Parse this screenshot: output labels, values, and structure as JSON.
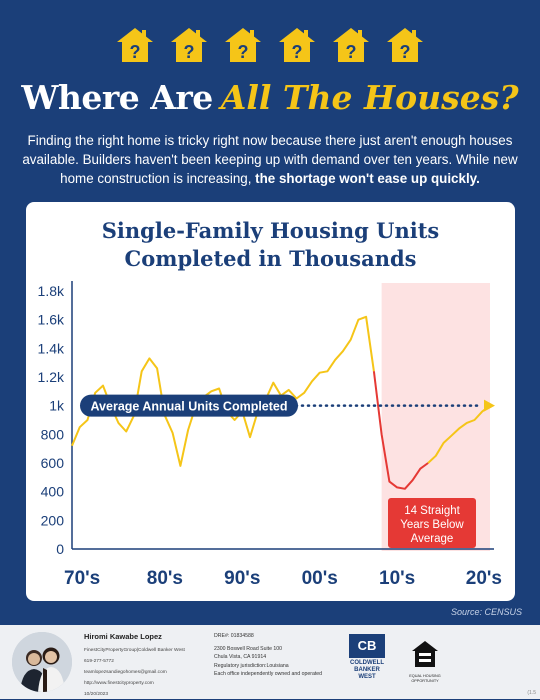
{
  "header": {
    "house_icon_count": 6,
    "house_color": "#f5c518",
    "house_glyph": "?",
    "title_part1": "Where Are",
    "title_part2": "All The Houses?",
    "intro_text": "Finding the right home is tricky right now because there just aren't enough houses available. Builders haven't been keeping up with demand over ten years. While new home construction is increasing,",
    "intro_bold": "the shortage won't ease up quickly."
  },
  "chart_title_line1": "Single-Family Housing Units",
  "chart_title_line2": "Completed in Thousands",
  "chart_data": {
    "type": "line",
    "title": "Single-Family Housing Units Completed in Thousands",
    "xlabel": "",
    "ylabel": "",
    "ylim": [
      0,
      1800
    ],
    "y_ticks": [
      "0",
      "200",
      "400",
      "600",
      "800",
      "1k",
      "1.2k",
      "1.4k",
      "1.6k",
      "1.8k"
    ],
    "x_ticks": [
      "70's",
      "80's",
      "90's",
      "00's",
      "10's",
      "20's"
    ],
    "x_ticks_years": [
      1970,
      1980,
      1990,
      2000,
      2010,
      2020
    ],
    "series": [
      {
        "color": "#f5c518",
        "points": [
          [
            1968,
            720
          ],
          [
            1969,
            850
          ],
          [
            1970,
            900
          ],
          [
            1971,
            1090
          ],
          [
            1972,
            1140
          ],
          [
            1973,
            1000
          ],
          [
            1974,
            880
          ],
          [
            1975,
            820
          ],
          [
            1976,
            930
          ],
          [
            1977,
            1240
          ],
          [
            1978,
            1330
          ],
          [
            1979,
            1260
          ],
          [
            1980,
            930
          ],
          [
            1981,
            810
          ],
          [
            1982,
            580
          ],
          [
            1983,
            830
          ],
          [
            1984,
            1000
          ],
          [
            1985,
            1060
          ],
          [
            1986,
            1100
          ],
          [
            1987,
            1120
          ],
          [
            1988,
            960
          ],
          [
            1989,
            900
          ],
          [
            1990,
            960
          ],
          [
            1991,
            780
          ],
          [
            1992,
            960
          ],
          [
            1993,
            1040
          ],
          [
            1994,
            1160
          ],
          [
            1995,
            1070
          ],
          [
            1996,
            1110
          ],
          [
            1997,
            1050
          ],
          [
            1998,
            1090
          ],
          [
            1999,
            1170
          ],
          [
            2000,
            1230
          ],
          [
            2001,
            1240
          ],
          [
            2002,
            1320
          ],
          [
            2003,
            1380
          ],
          [
            2004,
            1460
          ],
          [
            2005,
            1600
          ],
          [
            2006,
            1620
          ],
          [
            2007,
            1240
          ]
        ]
      },
      {
        "color": "#e53935",
        "points": [
          [
            2007,
            1240
          ],
          [
            2008,
            800
          ],
          [
            2009,
            470
          ],
          [
            2010,
            430
          ],
          [
            2011,
            420
          ],
          [
            2012,
            480
          ],
          [
            2013,
            560
          ],
          [
            2014,
            600
          ]
        ]
      },
      {
        "color": "#f5c518",
        "points": [
          [
            2014,
            600
          ],
          [
            2015,
            650
          ],
          [
            2016,
            740
          ],
          [
            2017,
            790
          ],
          [
            2018,
            840
          ],
          [
            2019,
            880
          ],
          [
            2020,
            900
          ],
          [
            2021,
            960
          ],
          [
            2022,
            1000
          ]
        ]
      }
    ],
    "average": {
      "value": 1000,
      "label": "Average Annual Units Completed"
    },
    "highlight": {
      "x_start": 2008,
      "x_end": 2022,
      "label": "14 Straight Years Below Average"
    }
  },
  "annotation_lines": [
    "14 Straight",
    "Years Below",
    "Average"
  ],
  "source": "Source: CENSUS",
  "footer": {
    "agent_name": "Hiromi Kawabe Lopez",
    "agent_group": "FinestCityPropertyGroup|Coldwell Banker West",
    "phone": "619-277-5772",
    "email": "teamlopezsandiegohomes@gmail.com",
    "website": "http://www.finestcityproperty.com",
    "date": "10/20/2023",
    "dre": "DRE#: 01834588",
    "address1": "2300 Boswell Road Suite 100",
    "address2": "Chula Vista, CA 91914",
    "jurisdiction": "Regulatory jurisdiction:Louisiana",
    "disclaimer": "Each office independently owned and operated",
    "brand_line1": "COLDWELL",
    "brand_line2": "BANKER",
    "brand_line3": "WEST",
    "brand_logo_letters": "CB",
    "eho_line1": "EQUAL HOUSING",
    "eho_line2": "OPPORTUNITY",
    "version": "(1.5"
  }
}
